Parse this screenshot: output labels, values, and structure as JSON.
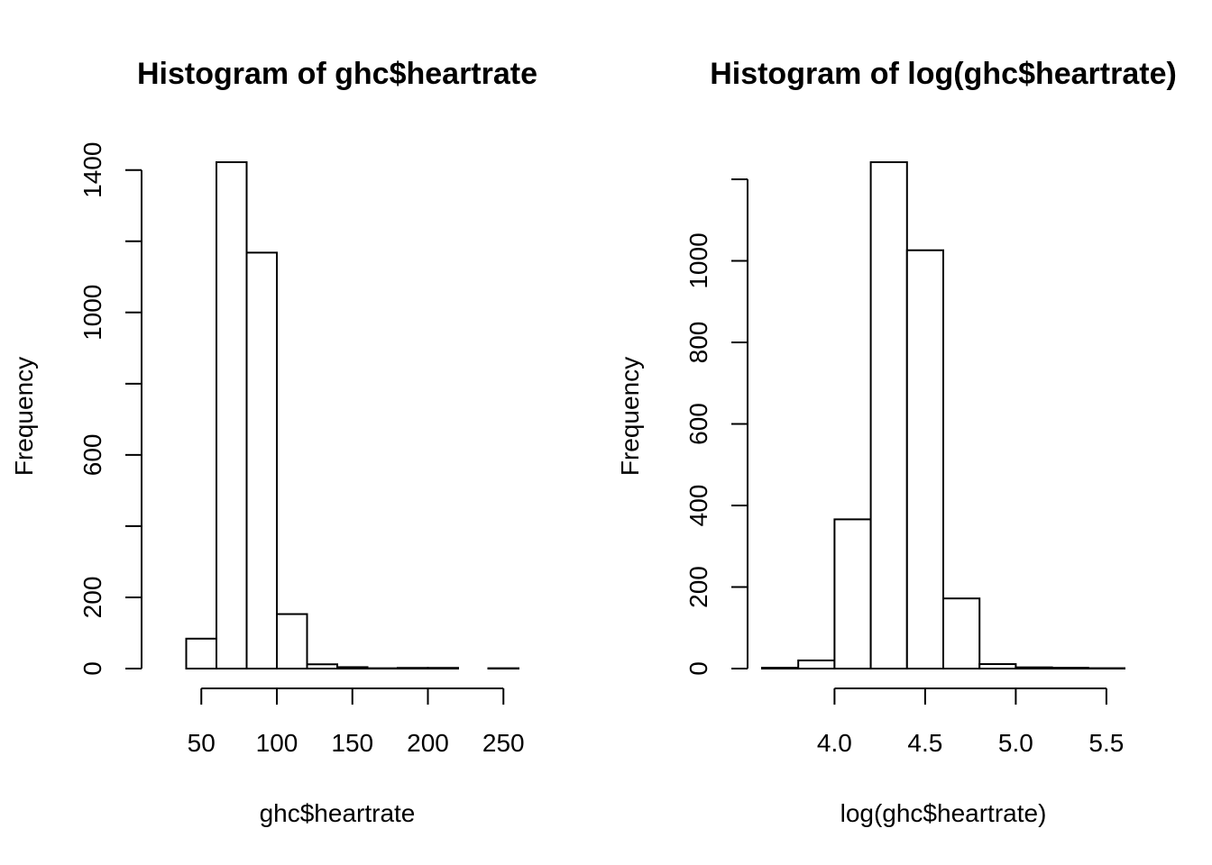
{
  "chart_data": [
    {
      "type": "bar",
      "title": "Histogram of ghc$heartrate",
      "xlabel": "ghc$heartrate",
      "ylabel": "Frequency",
      "bins": [
        [
          20,
          40
        ],
        [
          40,
          60
        ],
        [
          60,
          80
        ],
        [
          80,
          100
        ],
        [
          100,
          120
        ],
        [
          120,
          140
        ],
        [
          140,
          160
        ],
        [
          160,
          180
        ],
        [
          180,
          200
        ],
        [
          200,
          220
        ],
        [
          220,
          240
        ],
        [
          240,
          260
        ]
      ],
      "values": [
        0,
        84,
        1422,
        1168,
        153,
        12,
        4,
        1,
        2,
        2,
        0,
        1
      ],
      "xlim": [
        20,
        260
      ],
      "ylim": [
        0,
        1422
      ],
      "xticks": [
        50,
        100,
        150,
        200,
        250
      ],
      "xtick_labels": [
        "50",
        "100",
        "150",
        "200",
        "250"
      ],
      "yticks": [
        0,
        200,
        400,
        600,
        800,
        1000,
        1200,
        1400
      ],
      "ytick_labels": [
        "0",
        "200",
        "",
        "600",
        "",
        "1000",
        "",
        "1400"
      ],
      "grid": false
    },
    {
      "type": "bar",
      "title": "Histogram of log(ghc$heartrate)",
      "xlabel": "log(ghc$heartrate)",
      "ylabel": "Frequency",
      "bins": [
        [
          3.6,
          3.8
        ],
        [
          3.8,
          4.0
        ],
        [
          4.0,
          4.2
        ],
        [
          4.2,
          4.4
        ],
        [
          4.4,
          4.6
        ],
        [
          4.6,
          4.8
        ],
        [
          4.8,
          5.0
        ],
        [
          5.0,
          5.2
        ],
        [
          5.2,
          5.4
        ],
        [
          5.4,
          5.6
        ]
      ],
      "values": [
        2,
        20,
        366,
        1242,
        1026,
        172,
        11,
        3,
        2,
        1
      ],
      "xlim": [
        3.6,
        5.6
      ],
      "ylim": [
        0,
        1242
      ],
      "xticks": [
        4.0,
        4.5,
        5.0,
        5.5
      ],
      "xtick_labels": [
        "4.0",
        "4.5",
        "5.0",
        "5.5"
      ],
      "yticks": [
        0,
        200,
        400,
        600,
        800,
        1000,
        1200
      ],
      "ytick_labels": [
        "0",
        "200",
        "400",
        "600",
        "800",
        "1000",
        ""
      ],
      "grid": false
    }
  ]
}
